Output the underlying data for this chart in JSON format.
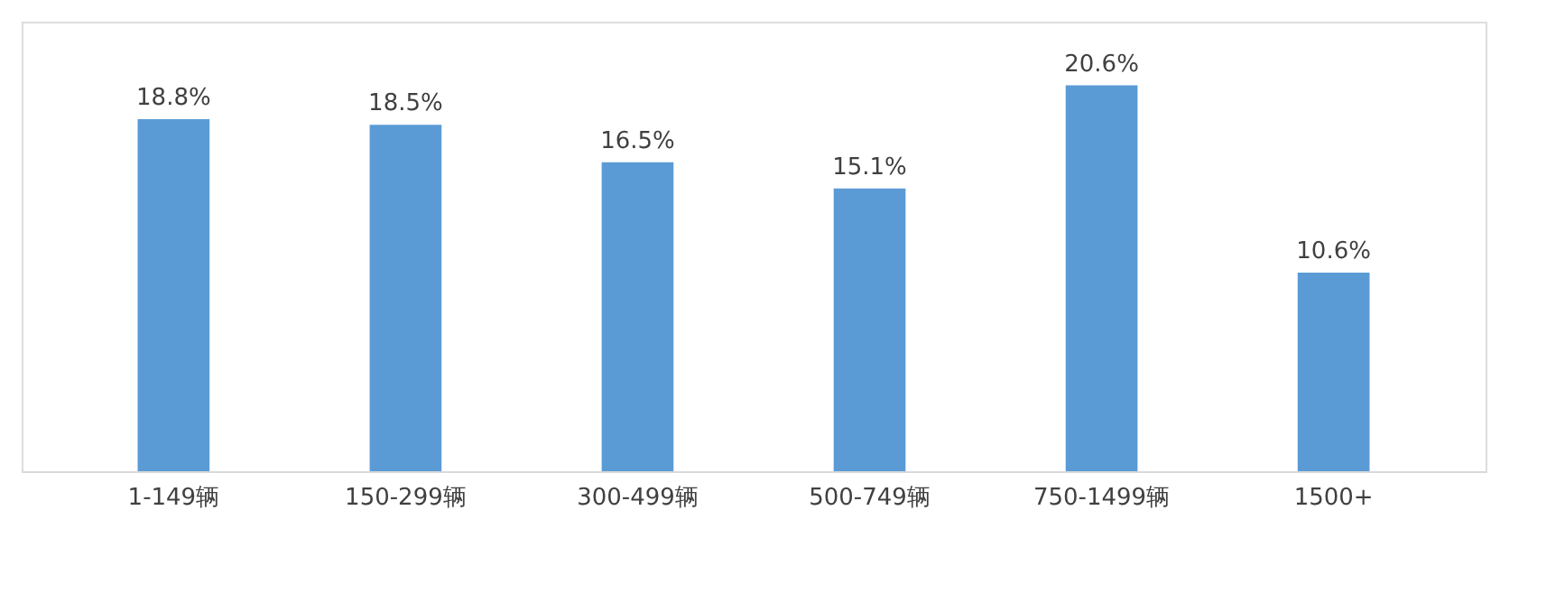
{
  "chart_data": {
    "type": "bar",
    "categories": [
      "1-149辆",
      "150-299辆",
      "300-499辆",
      "500-749辆",
      "750-1499辆",
      "1500+"
    ],
    "values": [
      18.8,
      18.5,
      16.5,
      15.1,
      20.6,
      10.6
    ],
    "value_labels": [
      "18.8%",
      "18.5%",
      "16.5%",
      "15.1%",
      "20.6%",
      "10.6%"
    ],
    "color": "#5b9bd5",
    "ylim": [
      0,
      24
    ],
    "grid": false
  }
}
